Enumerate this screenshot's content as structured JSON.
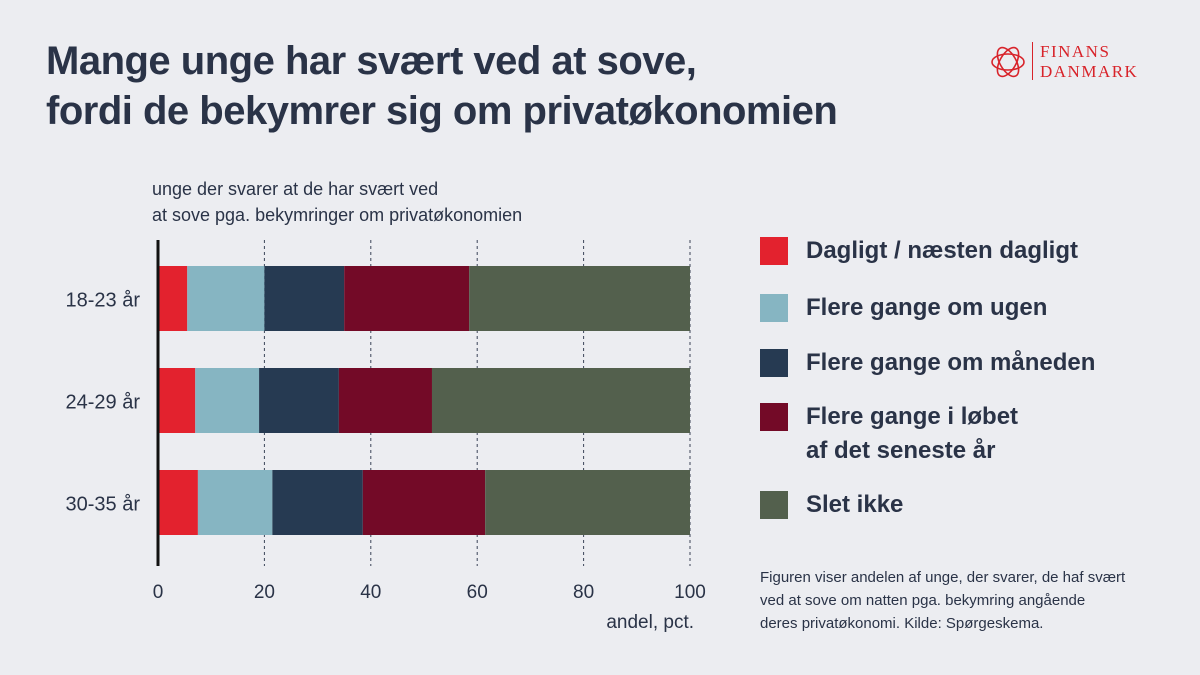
{
  "title": {
    "line1": "Mange unge har svært ved at sove,",
    "line2": "fordi de bekymrer sig om privatøkonomien"
  },
  "logo": {
    "line1": "FINANS",
    "line2": "DANMARK",
    "color": "#d8232a"
  },
  "subtitle": {
    "line1": "unge der svarer at de har svært ved",
    "line2": "at  sove pga. bekymringer om privatøkonomien"
  },
  "note": {
    "line1": "Figuren viser andelen af unge, der svarer, de haf svært",
    "line2": "ved at sove om natten pga. bekymring angående",
    "line3": "deres privatøkonomi. Kilde: Spørgeskema."
  },
  "legend": [
    {
      "label": "Dagligt / næsten dagligt",
      "color": "#e3222e"
    },
    {
      "label": "Flere gange om ugen",
      "color": "#86b5c2"
    },
    {
      "label": "Flere gange om måneden",
      "color": "#263a52"
    },
    {
      "label": "Flere gange i løbet\naf det seneste år",
      "color": "#730a27"
    },
    {
      "label": "Slet ikke",
      "color": "#53604d"
    }
  ],
  "chart_data": {
    "type": "bar",
    "orientation": "horizontal",
    "stacked": true,
    "categories": [
      "18-23 år",
      "24-29 år",
      "30-35 år"
    ],
    "series": [
      {
        "name": "Dagligt / næsten dagligt",
        "values": [
          5.5,
          7,
          7.5
        ],
        "color": "#e3222e"
      },
      {
        "name": "Flere gange om ugen",
        "values": [
          14.5,
          12,
          14
        ],
        "color": "#86b5c2"
      },
      {
        "name": "Flere gange om måneden",
        "values": [
          15,
          15,
          17
        ],
        "color": "#263a52"
      },
      {
        "name": "Flere gange i løbet af det seneste år",
        "values": [
          23.5,
          17.5,
          23
        ],
        "color": "#730a27"
      },
      {
        "name": "Slet ikke",
        "values": [
          41.5,
          48.5,
          38.5
        ],
        "color": "#53604d"
      }
    ],
    "xlim": [
      0,
      100
    ],
    "xticks": [
      0,
      20,
      40,
      60,
      80,
      100
    ],
    "xlabel": "andel, pct.",
    "ylabel": "",
    "grid": "vertical dashed",
    "legend_position": "right"
  }
}
